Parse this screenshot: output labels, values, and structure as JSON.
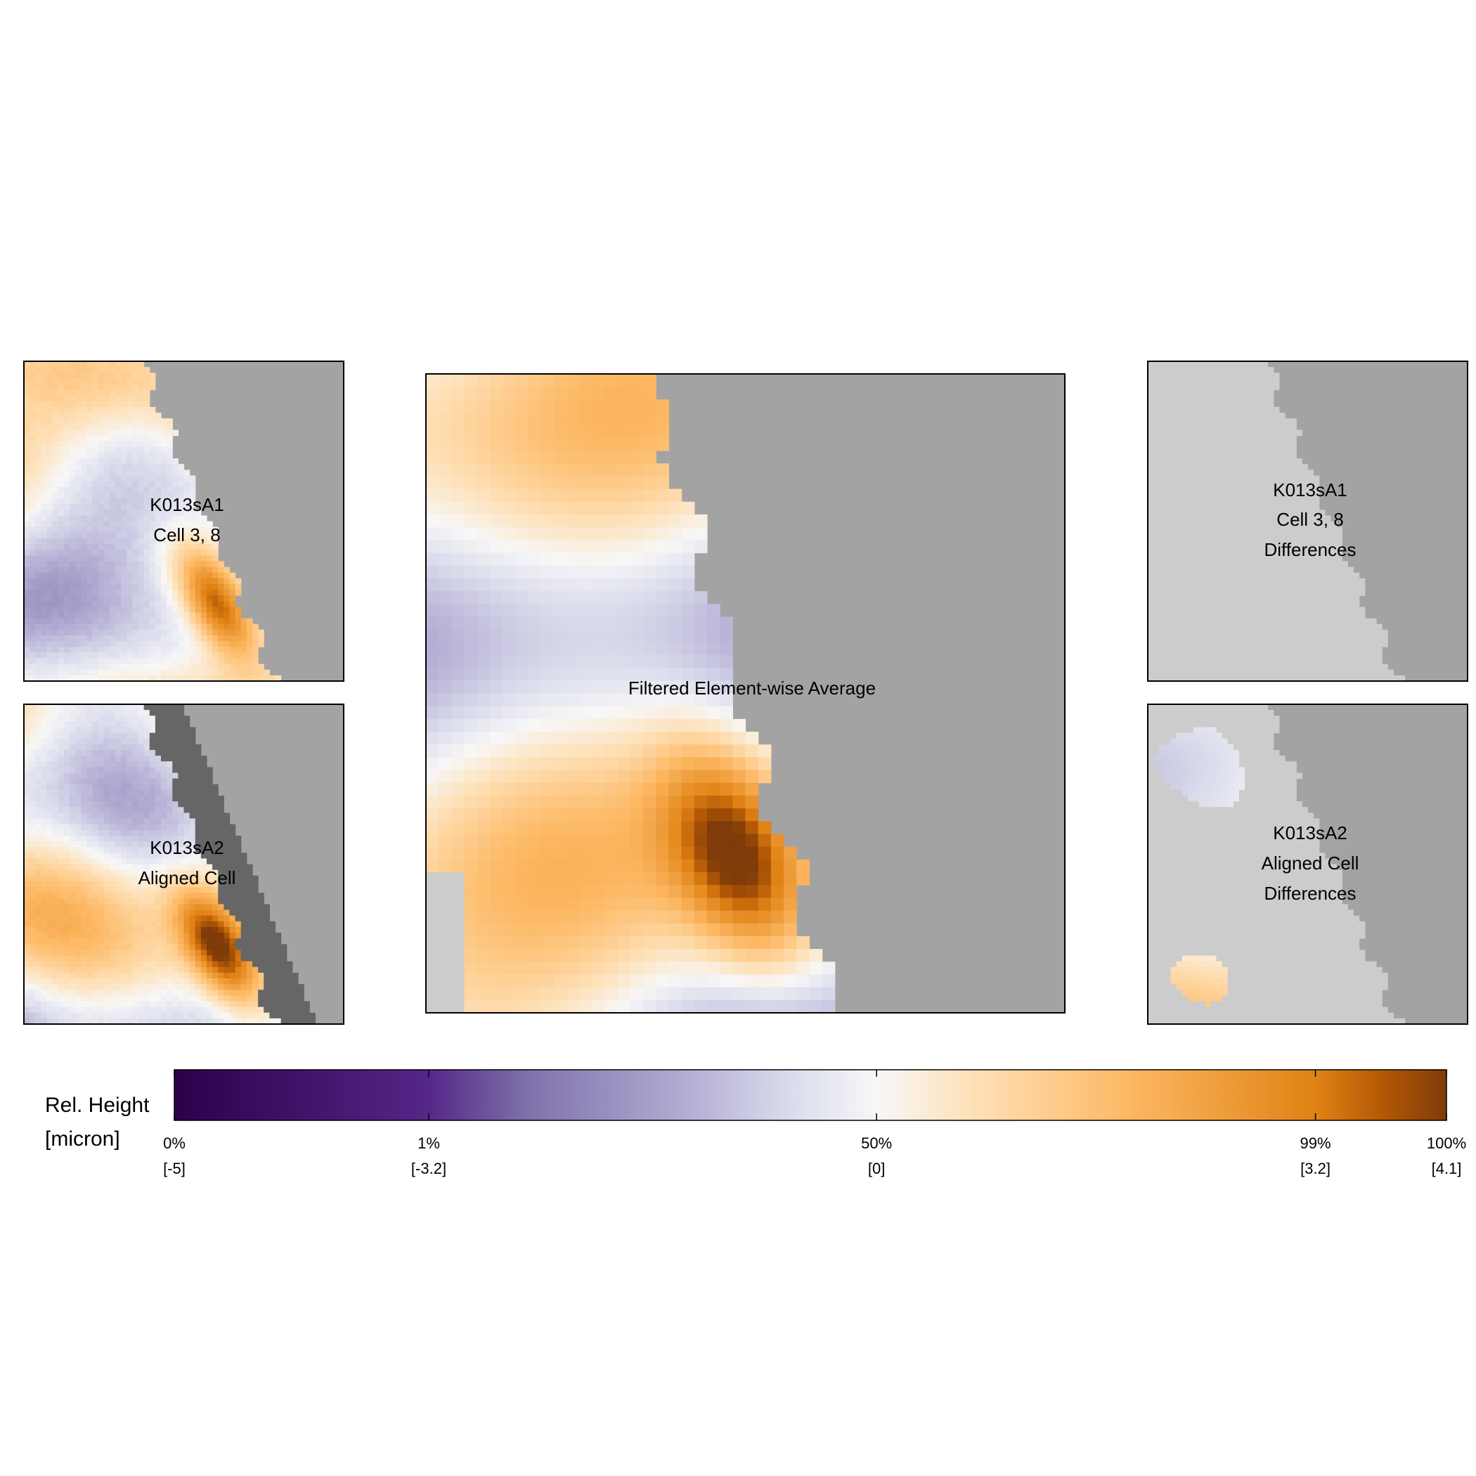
{
  "chart_data": {
    "type": "heatmap",
    "panels": [
      {
        "id": "k013sa1-cell",
        "label_lines": [
          "K013sA1",
          "Cell 3, 8"
        ],
        "kind": "surface",
        "seed": 11
      },
      {
        "id": "k013sa2-cell",
        "label_lines": [
          "K013sA2",
          "Aligned Cell"
        ],
        "kind": "surface",
        "seed": 23
      },
      {
        "id": "average",
        "label_lines": [
          "Filtered Element-wise Average"
        ],
        "kind": "average",
        "seed": 37
      },
      {
        "id": "k013sa1-diff",
        "label_lines": [
          "K013sA1",
          "Cell 3, 8",
          "Differences"
        ],
        "kind": "differences",
        "seed": 51
      },
      {
        "id": "k013sa2-diff",
        "label_lines": [
          "K013sA2",
          "Aligned Cell",
          "Differences"
        ],
        "kind": "differences",
        "seed": 67
      }
    ],
    "colorbar": {
      "title_lines": [
        "Rel. Height",
        "[micron]"
      ],
      "ticks": [
        {
          "percentile": "0%",
          "value": "[-5]",
          "position": 0.0
        },
        {
          "percentile": "1%",
          "value": "[-3.2]",
          "position": 0.2
        },
        {
          "percentile": "50%",
          "value": "[0]",
          "position": 0.552
        },
        {
          "percentile": "99%",
          "value": "[3.2]",
          "position": 0.897
        },
        {
          "percentile": "100%",
          "value": "[4.1]",
          "position": 1.0
        }
      ],
      "value_range": [
        -5,
        4.1
      ],
      "gradient": [
        {
          "pos": 0.0,
          "color": "#2d004b"
        },
        {
          "pos": 0.2,
          "color": "#542788"
        },
        {
          "pos": 0.28,
          "color": "#8073ac"
        },
        {
          "pos": 0.4,
          "color": "#b2abd2"
        },
        {
          "pos": 0.48,
          "color": "#d8daeb"
        },
        {
          "pos": 0.552,
          "color": "#f7f7f7"
        },
        {
          "pos": 0.63,
          "color": "#fee0b6"
        },
        {
          "pos": 0.75,
          "color": "#fdb863"
        },
        {
          "pos": 0.897,
          "color": "#e08214"
        },
        {
          "pos": 0.95,
          "color": "#b35806"
        },
        {
          "pos": 1.0,
          "color": "#7f3b08"
        }
      ]
    },
    "colors": {
      "outside_region": "#a3a3a3",
      "missing_region": "#cccccc",
      "shifted_region": "#666666",
      "frame": "#000000"
    }
  }
}
